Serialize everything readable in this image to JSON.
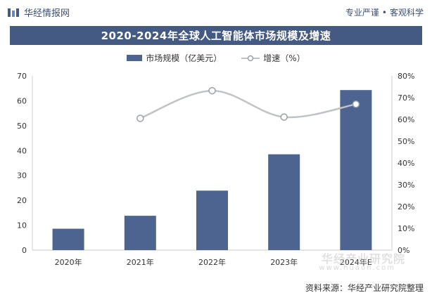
{
  "header": {
    "brand": "华经情报网",
    "tagline_left": "专业严谨",
    "tagline_dot": "•",
    "tagline_right": "客观科学"
  },
  "colors": {
    "title_bg": "#445a82",
    "bar": "#4d6390",
    "line": "#bfc3c8",
    "marker_fill": "#ffffff",
    "marker_stroke": "#9aa0a6"
  },
  "chart_data": {
    "type": "bar",
    "title": "2020-2024年全球人工智能体市场规模及增速",
    "categories": [
      "2020年",
      "2021年",
      "2022年",
      "2023年",
      "2024年E"
    ],
    "series": [
      {
        "name": "市场规模（亿美元）",
        "type": "bar",
        "axis": "left",
        "values": [
          8.6,
          13.8,
          23.9,
          38.5,
          64.3
        ]
      },
      {
        "name": "增速（%）",
        "type": "line",
        "smooth": true,
        "axis": "right",
        "values": [
          null,
          60.5,
          73.2,
          61.1,
          67.0
        ]
      }
    ],
    "y_left": {
      "min": 0,
      "max": 70,
      "step": 10,
      "ticks": [
        "0",
        "10",
        "20",
        "30",
        "40",
        "50",
        "60",
        "70"
      ]
    },
    "y_right": {
      "min": 0,
      "max": 80,
      "step": 10,
      "ticks": [
        "0%",
        "10%",
        "20%",
        "30%",
        "40%",
        "50%",
        "60%",
        "70%",
        "80%"
      ]
    },
    "grid": false,
    "legend": "top-center"
  },
  "source": "资料来源：华经产业研究院整理",
  "watermark": {
    "text": "华经产业研究院",
    "url": "www.huaon.com"
  }
}
